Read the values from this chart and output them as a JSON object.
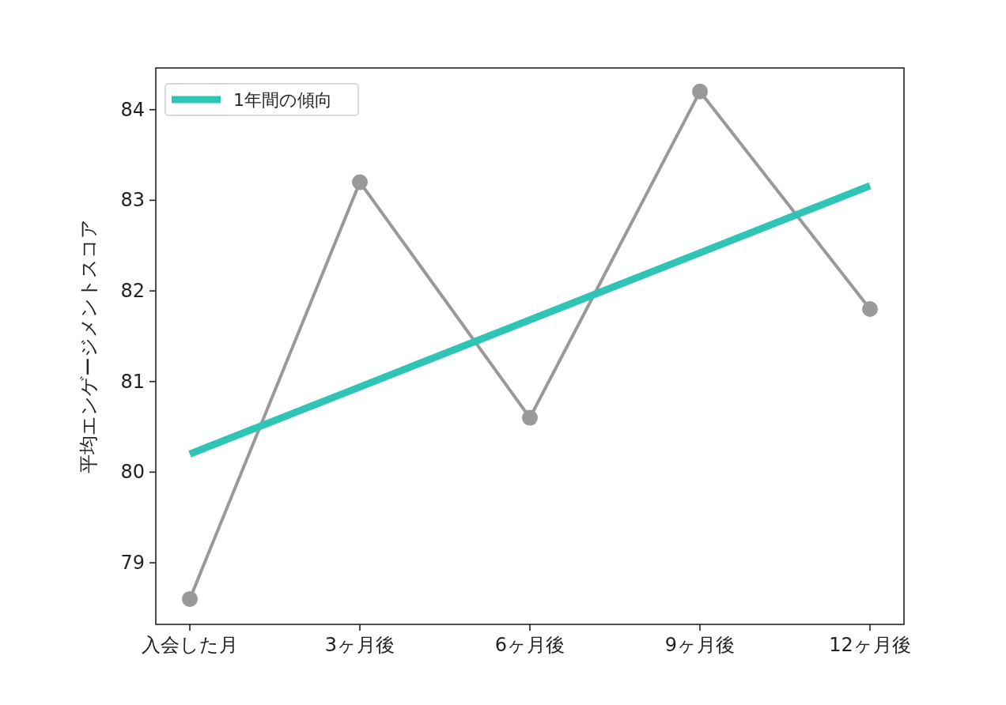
{
  "chart_data": {
    "type": "line",
    "ylabel": "平均エンゲージメントスコア",
    "categories": [
      "入会した月",
      "3ヶ月後",
      "6ヶ月後",
      "9ヶ月後",
      "12ヶ月後"
    ],
    "ylim": [
      78.32,
      84.46
    ],
    "yticks": [
      79,
      80,
      81,
      82,
      83,
      84
    ],
    "grid": false,
    "legend": "top left",
    "series": [
      {
        "color": "#999999",
        "values": [
          78.6,
          83.2,
          80.6,
          84.2,
          81.8
        ],
        "marker": "circle"
      },
      {
        "name": "1年間の傾向",
        "color": "#2ec4b6",
        "values": [
          80.2,
          80.94,
          81.68,
          82.42,
          83.16
        ],
        "marker": "none"
      }
    ]
  }
}
